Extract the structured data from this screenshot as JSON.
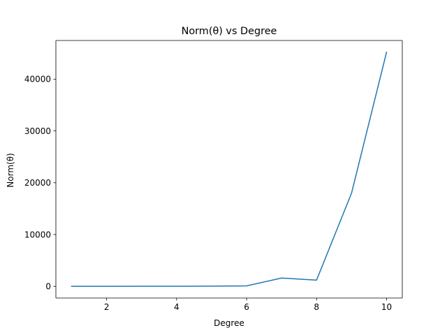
{
  "chart_data": {
    "type": "line",
    "title": "Norm(θ) vs Degree",
    "xlabel": "Degree",
    "ylabel": "Norm(θ)",
    "x": [
      1,
      2,
      3,
      4,
      5,
      6,
      7,
      8,
      9,
      10
    ],
    "series": [
      {
        "values": [
          2,
          5,
          10,
          20,
          40,
          80,
          1600,
          1200,
          18000,
          45200
        ],
        "color": "#1f77b4"
      }
    ],
    "xlim": [
      0.55,
      10.45
    ],
    "ylim": [
      -2258,
      47460
    ],
    "xticks": [
      2,
      4,
      6,
      8,
      10
    ],
    "yticks": [
      0,
      10000,
      20000,
      30000,
      40000
    ],
    "grid": false,
    "legend": "none"
  }
}
